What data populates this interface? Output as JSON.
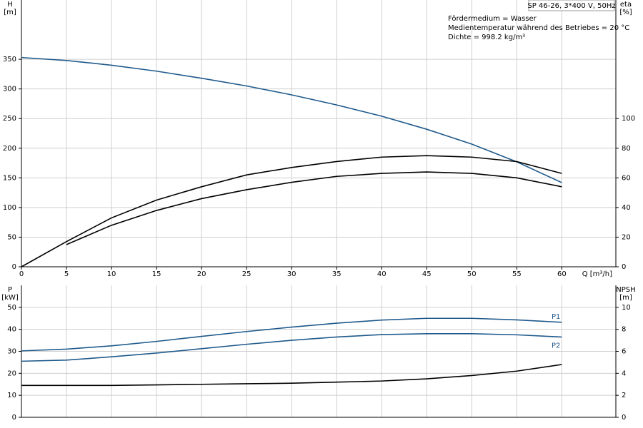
{
  "chart_data": [
    {
      "type": "line",
      "ylabel": "H",
      "ylabel_unit": "[m]",
      "y2label": "eta",
      "y2label_unit": "[%]",
      "xlabel": "Q [m³/h]",
      "annotations": [
        "SP 46-26, 3*400 V, 50Hz",
        "Fördermedium = Wasser",
        "Medientemperatur während des Betriebes = 20 °C",
        "Dichte = 998.2 kg/m³"
      ],
      "x": [
        0,
        5,
        10,
        15,
        20,
        25,
        30,
        35,
        40,
        45,
        50,
        55,
        60
      ],
      "xlim": [
        0,
        66
      ],
      "xticks": [
        0,
        5,
        10,
        15,
        20,
        25,
        30,
        35,
        40,
        45,
        50,
        55,
        60
      ],
      "ylim": [
        0,
        450
      ],
      "yticks": [
        0,
        50,
        100,
        150,
        200,
        250,
        300,
        350
      ],
      "y2lim": [
        0,
        180
      ],
      "y2ticks": [
        0,
        20,
        40,
        60,
        80,
        100
      ],
      "grid": true,
      "series": [
        {
          "color": "#1f5a8c",
          "values": [
            353,
            348,
            340,
            330,
            318,
            305,
            290,
            273,
            254,
            232,
            207,
            177,
            142
          ]
        },
        {
          "color": "#000000",
          "axis": "y2",
          "values": [
            0,
            17,
            33,
            45,
            54,
            62,
            67,
            71,
            74,
            75,
            74,
            71,
            63
          ]
        },
        {
          "color": "#000000",
          "axis": "y2",
          "values": [
            null,
            15,
            28,
            38,
            46,
            52,
            57,
            61,
            63,
            64,
            63,
            60,
            54
          ]
        }
      ]
    },
    {
      "type": "line",
      "ylabel": "P",
      "ylabel_unit": "[kW]",
      "y2label": "NPSH",
      "y2label_unit": "[m]",
      "x": [
        0,
        5,
        10,
        15,
        20,
        25,
        30,
        35,
        40,
        45,
        50,
        55,
        60
      ],
      "xlim": [
        0,
        66
      ],
      "ylim": [
        0,
        60
      ],
      "yticks": [
        0,
        10,
        20,
        30,
        40,
        50
      ],
      "y2lim": [
        0,
        12
      ],
      "y2ticks": [
        0,
        2,
        4,
        6,
        8,
        10
      ],
      "grid": true,
      "series": [
        {
          "name": "P1",
          "color": "#1f5a8c",
          "values": [
            30.2,
            31,
            32.5,
            34.5,
            36.8,
            39,
            41,
            42.8,
            44.2,
            45,
            45,
            44.3,
            43.2
          ]
        },
        {
          "name": "P2",
          "color": "#1f5a8c",
          "values": [
            25.5,
            26,
            27.5,
            29.2,
            31.2,
            33.2,
            35,
            36.5,
            37.6,
            38,
            38,
            37.5,
            36.5
          ]
        },
        {
          "color": "#000000",
          "axis": "y2",
          "values": [
            2.9,
            2.9,
            2.9,
            2.95,
            3,
            3.05,
            3.1,
            3.2,
            3.3,
            3.5,
            3.8,
            4.2,
            4.8
          ]
        }
      ]
    }
  ]
}
